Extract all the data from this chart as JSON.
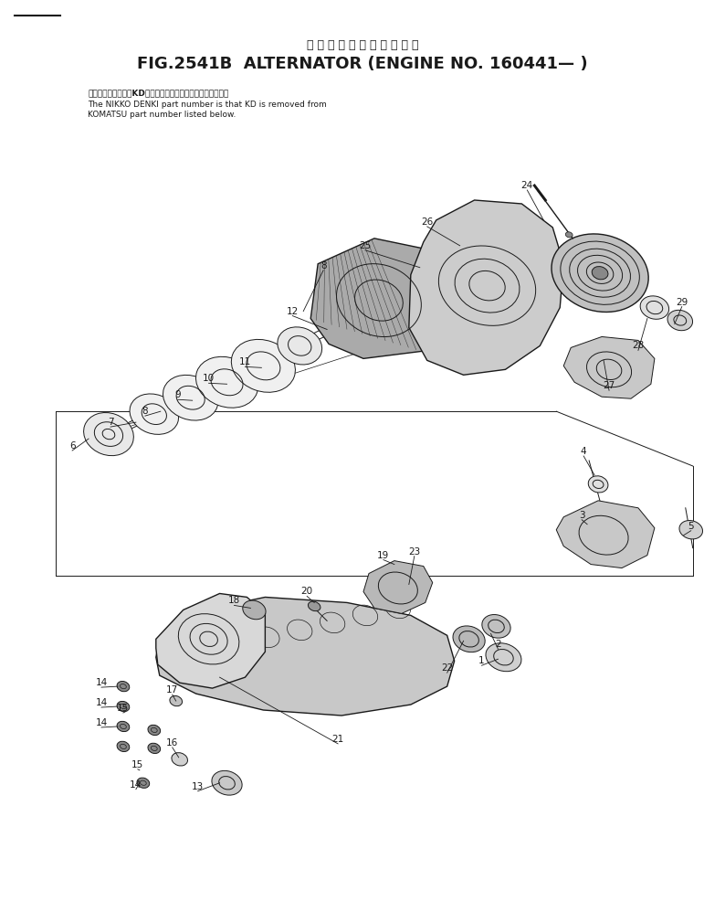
{
  "title_jp": "オ ル タ ネ ー タ 　 通 用 号 機",
  "title_en": "FIG.2541B  ALTERNATOR (ENGINE NO.160441— )",
  "note_jp": "品番のメーカー記号KDを使ったものが日産電機の品番です。",
  "note_en1": "The NIKKO DENKI part number is that KD is removed from",
  "note_en2": "KOMATSU part number listed below.",
  "bg_color": "#ffffff",
  "lc": "#1a1a1a",
  "figsize": [
    7.94,
    9.98
  ],
  "dpi": 100
}
